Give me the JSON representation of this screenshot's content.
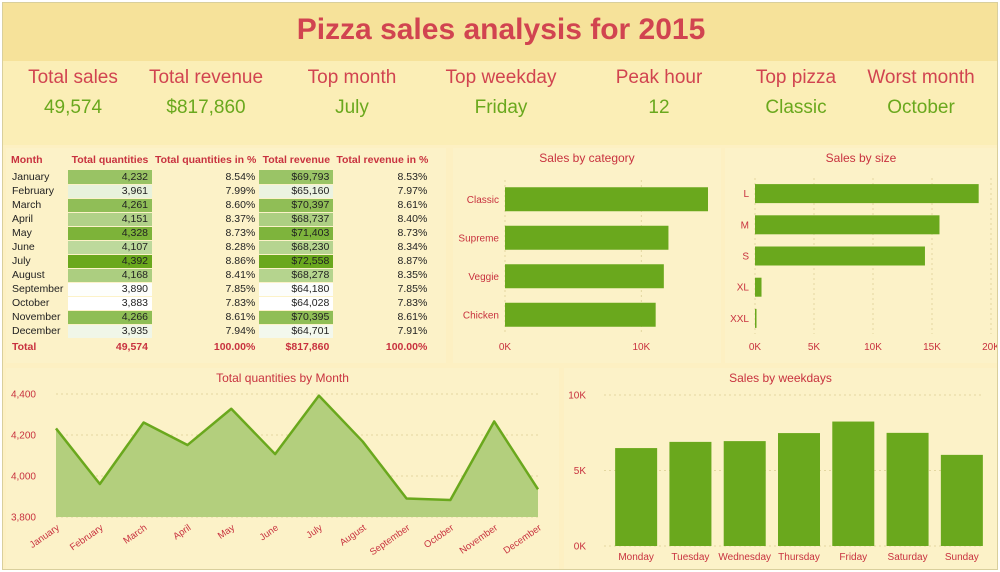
{
  "title": "Pizza sales analysis for 2015",
  "kpis": [
    {
      "label": "Total sales",
      "value": "49,574"
    },
    {
      "label": "Total revenue",
      "value": "$817,860"
    },
    {
      "label": "Top month",
      "value": "July"
    },
    {
      "label": "Top weekday",
      "value": "Friday"
    },
    {
      "label": "Peak hour",
      "value": "12"
    },
    {
      "label": "Top pizza",
      "value": "Classic"
    },
    {
      "label": "Worst month",
      "value": "October"
    }
  ],
  "table": {
    "headers": [
      "Month",
      "Total quantities",
      "Total quantities in %",
      "Total revenue",
      "Total revenue in %"
    ],
    "rows": [
      {
        "month": "January",
        "qty": "4,232",
        "qty_pct": "8.54%",
        "rev": "$69,793",
        "rev_pct": "8.53%",
        "qty_num": 4232,
        "rev_num": 69793
      },
      {
        "month": "February",
        "qty": "3,961",
        "qty_pct": "7.99%",
        "rev": "$65,160",
        "rev_pct": "7.97%",
        "qty_num": 3961,
        "rev_num": 65160
      },
      {
        "month": "March",
        "qty": "4,261",
        "qty_pct": "8.60%",
        "rev": "$70,397",
        "rev_pct": "8.61%",
        "qty_num": 4261,
        "rev_num": 70397
      },
      {
        "month": "April",
        "qty": "4,151",
        "qty_pct": "8.37%",
        "rev": "$68,737",
        "rev_pct": "8.40%",
        "qty_num": 4151,
        "rev_num": 68737
      },
      {
        "month": "May",
        "qty": "4,328",
        "qty_pct": "8.73%",
        "rev": "$71,403",
        "rev_pct": "8.73%",
        "qty_num": 4328,
        "rev_num": 71403
      },
      {
        "month": "June",
        "qty": "4,107",
        "qty_pct": "8.28%",
        "rev": "$68,230",
        "rev_pct": "8.34%",
        "qty_num": 4107,
        "rev_num": 68230
      },
      {
        "month": "July",
        "qty": "4,392",
        "qty_pct": "8.86%",
        "rev": "$72,558",
        "rev_pct": "8.87%",
        "qty_num": 4392,
        "rev_num": 72558
      },
      {
        "month": "August",
        "qty": "4,168",
        "qty_pct": "8.41%",
        "rev": "$68,278",
        "rev_pct": "8.35%",
        "qty_num": 4168,
        "rev_num": 68278
      },
      {
        "month": "September",
        "qty": "3,890",
        "qty_pct": "7.85%",
        "rev": "$64,180",
        "rev_pct": "7.85%",
        "qty_num": 3890,
        "rev_num": 64180
      },
      {
        "month": "October",
        "qty": "3,883",
        "qty_pct": "7.83%",
        "rev": "$64,028",
        "rev_pct": "7.83%",
        "qty_num": 3883,
        "rev_num": 64028
      },
      {
        "month": "November",
        "qty": "4,266",
        "qty_pct": "8.61%",
        "rev": "$70,395",
        "rev_pct": "8.61%",
        "qty_num": 4266,
        "rev_num": 70395
      },
      {
        "month": "December",
        "qty": "3,935",
        "qty_pct": "7.94%",
        "rev": "$64,701",
        "rev_pct": "7.91%",
        "qty_num": 3935,
        "rev_num": 64701
      }
    ],
    "total": {
      "month": "Total",
      "qty": "49,574",
      "qty_pct": "100.00%",
      "rev": "$817,860",
      "rev_pct": "100.00%"
    }
  },
  "colors": {
    "accent": "#d14450",
    "bar": "#6aa81d",
    "area_fill": "#b3cf7d",
    "area_line": "#6aa81d",
    "heat_high": "#6aa81d",
    "heat_low": "#ffffff"
  },
  "chart_data": [
    {
      "type": "bar",
      "orientation": "horizontal",
      "title": "Sales by category",
      "categories": [
        "Classic",
        "Supreme",
        "Veggie",
        "Chicken"
      ],
      "values": [
        14888,
        11987,
        11649,
        11050
      ],
      "xlim": [
        0,
        14888
      ],
      "xticks": [
        "0K",
        "10K"
      ],
      "xtick_values": [
        0,
        10000
      ],
      "grid": true
    },
    {
      "type": "bar",
      "orientation": "horizontal",
      "title": "Sales by size",
      "categories": [
        "L",
        "M",
        "S",
        "XL",
        "XXL"
      ],
      "values": [
        18956,
        15635,
        14403,
        552,
        28
      ],
      "xlim": [
        0,
        20000
      ],
      "xticks": [
        "0K",
        "5K",
        "10K",
        "15K",
        "20K"
      ],
      "xtick_values": [
        0,
        5000,
        10000,
        15000,
        20000
      ],
      "grid": true
    },
    {
      "type": "area",
      "title": "Total quantities by Month",
      "categories": [
        "January",
        "February",
        "March",
        "April",
        "May",
        "June",
        "July",
        "August",
        "September",
        "October",
        "November",
        "December"
      ],
      "values": [
        4232,
        3961,
        4261,
        4151,
        4328,
        4107,
        4392,
        4168,
        3890,
        3883,
        4266,
        3935
      ],
      "ylim": [
        3800,
        4400
      ],
      "yticks": [
        "3,800",
        "4,000",
        "4,200",
        "4,400"
      ],
      "ytick_values": [
        3800,
        4000,
        4200,
        4400
      ],
      "grid": true
    },
    {
      "type": "bar",
      "title": "Sales by weekdays",
      "categories": [
        "Monday",
        "Tuesday",
        "Wednesday",
        "Thursday",
        "Friday",
        "Saturday",
        "Sunday"
      ],
      "values": [
        6485,
        6895,
        6946,
        7478,
        8242,
        7493,
        6035
      ],
      "ylim": [
        0,
        10000
      ],
      "yticks": [
        "0K",
        "5K",
        "10K"
      ],
      "ytick_values": [
        0,
        5000,
        10000
      ],
      "grid": true
    }
  ]
}
